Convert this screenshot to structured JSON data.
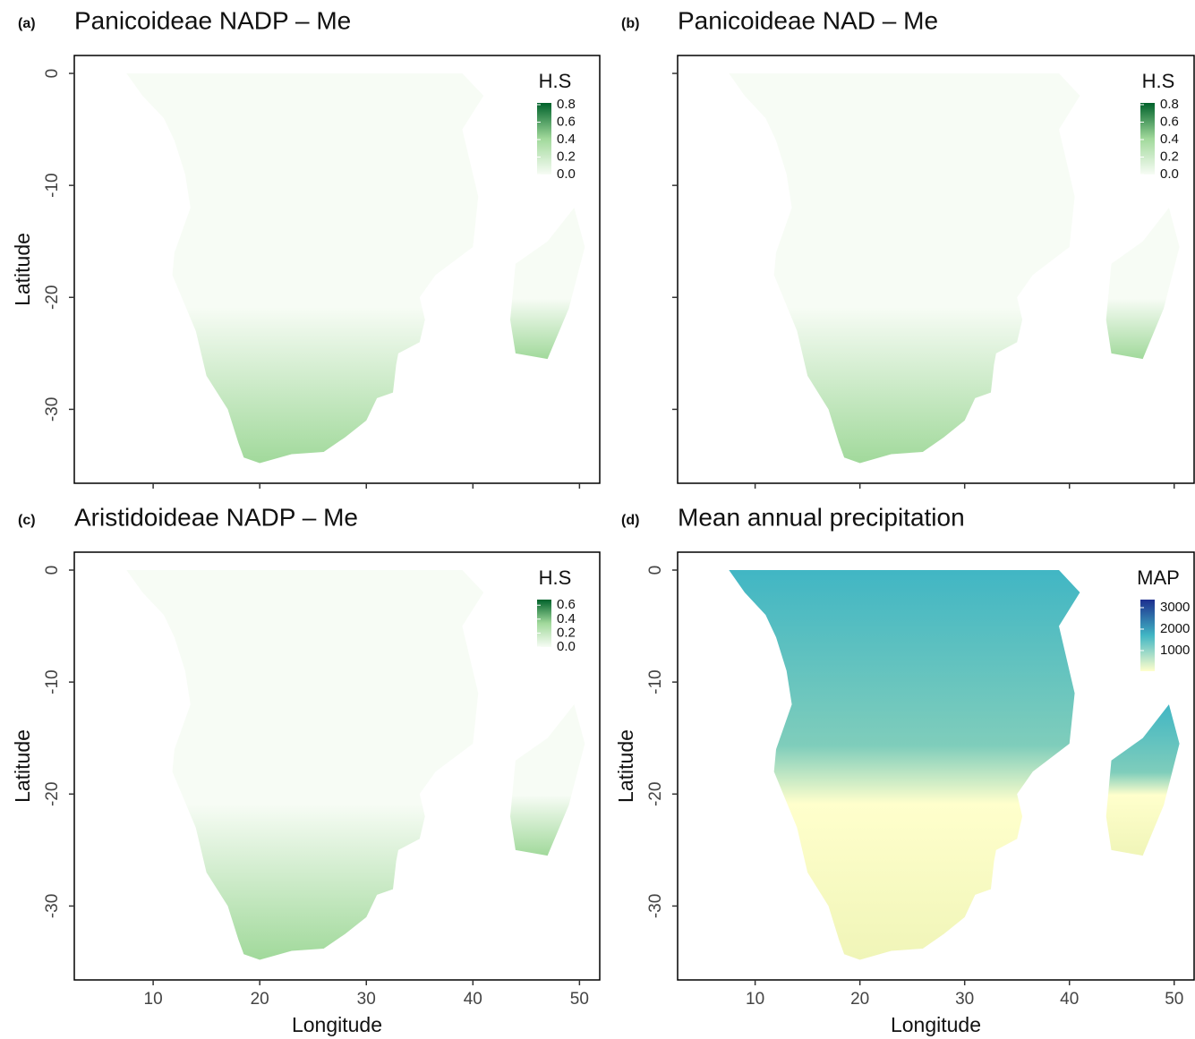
{
  "chart_data": [
    {
      "type": "map",
      "label": "(a)",
      "title": "Panicoideae NADP – Me",
      "ylabel": "Latitude",
      "xlim": [
        2.6,
        51.9
      ],
      "ylim": [
        -36.6,
        1.6
      ],
      "xticks": [
        10,
        20,
        30,
        40,
        50
      ],
      "yticks": [
        0,
        -10,
        -20,
        -30
      ],
      "xtick_labels": false,
      "ytick_labels": true,
      "legend": {
        "title": "H.S",
        "lim": [
          0,
          0.82
        ],
        "colors": [
          "#f7fcf5",
          "#a1d99b",
          "#00622b"
        ],
        "ticks": [
          0.8,
          0.6,
          0.4,
          0.2,
          {
            "value": 0,
            "label": "0.0"
          }
        ]
      }
    },
    {
      "type": "map",
      "label": "(b)",
      "title": "Panicoideae NAD – Me",
      "xlim": [
        2.6,
        51.9
      ],
      "ylim": [
        -36.6,
        1.6
      ],
      "xticks": [
        10,
        20,
        30,
        40,
        50
      ],
      "yticks": [
        0,
        -10,
        -20,
        -30
      ],
      "xtick_labels": false,
      "ytick_labels": false,
      "legend": {
        "title": "H.S",
        "lim": [
          0,
          0.82
        ],
        "colors": [
          "#f7fcf5",
          "#a1d99b",
          "#00622b"
        ],
        "ticks": [
          0.8,
          0.6,
          0.4,
          0.2,
          {
            "value": 0,
            "label": "0.0"
          }
        ]
      }
    },
    {
      "type": "map",
      "label": "(c)",
      "title": "Aristidoideae NADP – Me",
      "xlabel": "Longitude",
      "ylabel": "Latitude",
      "xlim": [
        2.6,
        51.9
      ],
      "ylim": [
        -36.6,
        1.6
      ],
      "xticks": [
        10,
        20,
        30,
        40,
        50
      ],
      "yticks": [
        0,
        -10,
        -20,
        -30
      ],
      "xtick_labels": true,
      "ytick_labels": true,
      "legend": {
        "title": "H.S",
        "lim": [
          0,
          0.68
        ],
        "colors": [
          "#f7fcf5",
          "#a1d99b",
          "#00622b"
        ],
        "ticks": [
          0.6,
          0.4,
          0.2,
          {
            "value": 0,
            "label": "0.0"
          }
        ]
      }
    },
    {
      "type": "map",
      "label": "(d)",
      "title": "Mean annual precipitation",
      "xlabel": "Longitude",
      "ylabel": "Latitude",
      "xlim": [
        2.6,
        51.9
      ],
      "ylim": [
        -36.6,
        1.6
      ],
      "xticks": [
        10,
        20,
        30,
        40,
        50
      ],
      "yticks": [
        0,
        -10,
        -20,
        -30
      ],
      "xtick_labels": true,
      "ytick_labels": true,
      "legend": {
        "title": "MAP",
        "lim": [
          40,
          3375
        ],
        "colors": [
          "#ffffcc",
          "#41b6c4",
          "#1d2f8f"
        ],
        "ticks": [
          3000,
          2000,
          1000
        ]
      }
    }
  ]
}
